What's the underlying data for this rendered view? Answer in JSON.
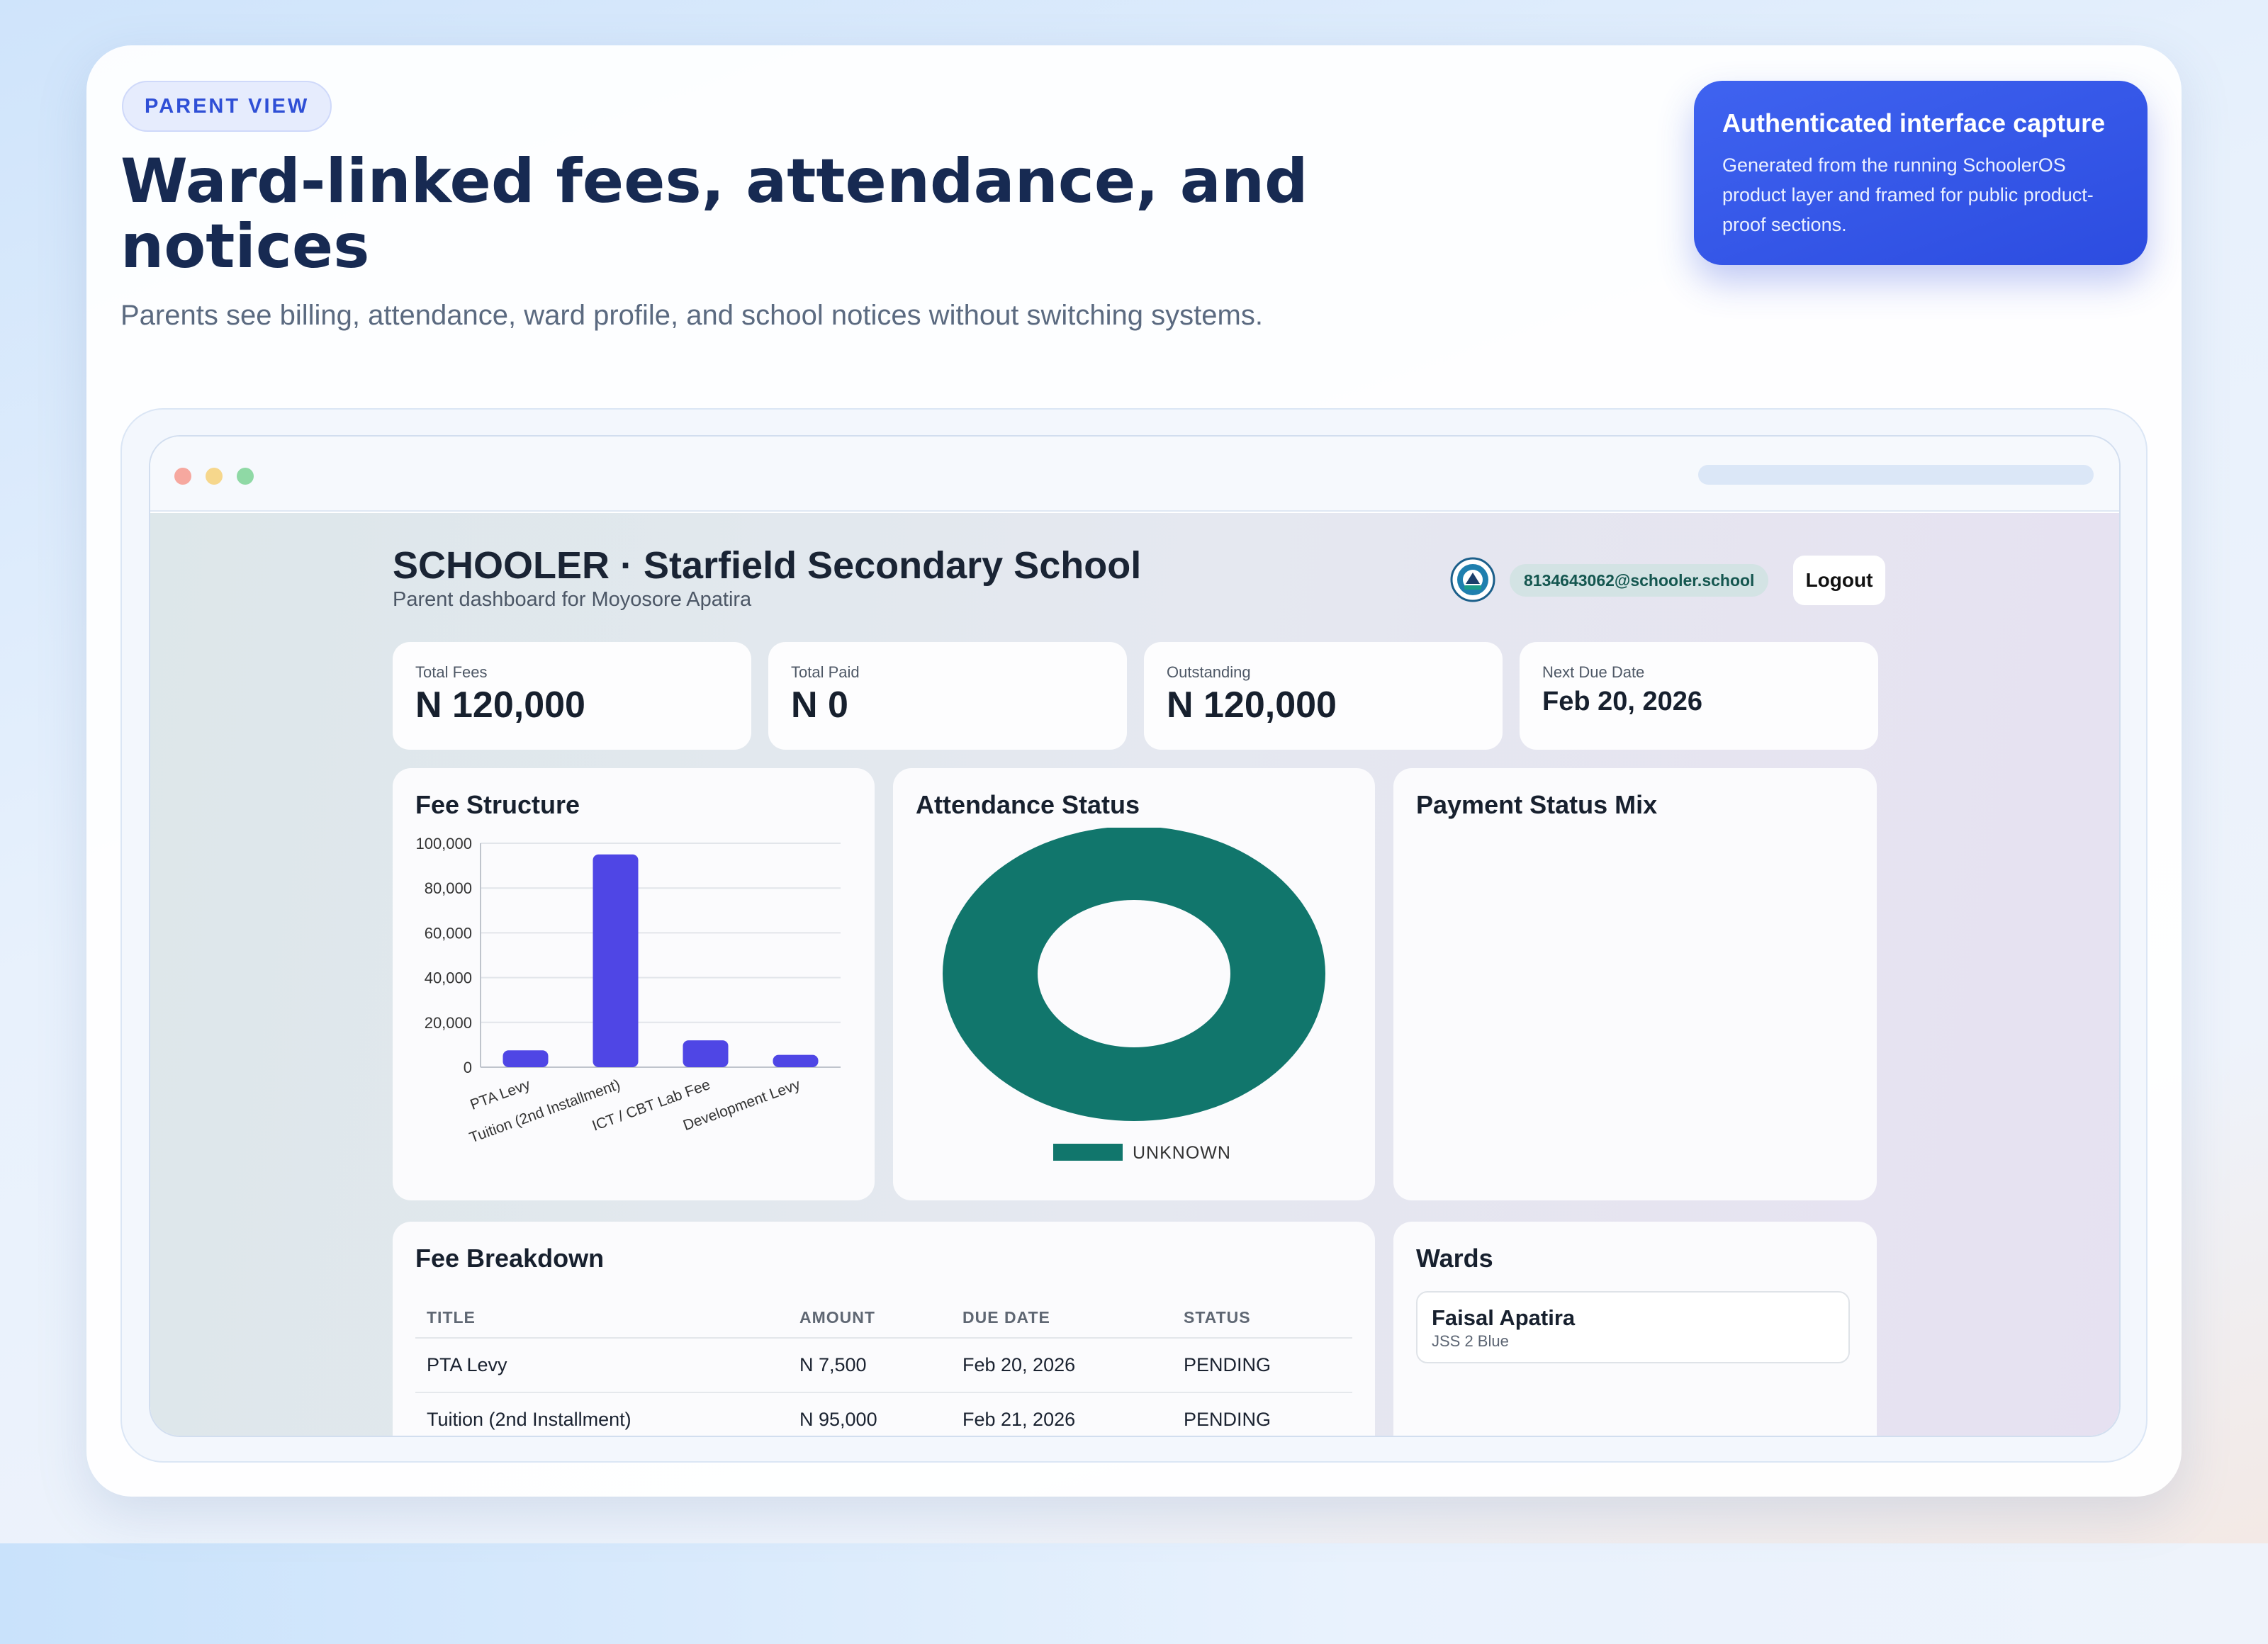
{
  "hero": {
    "pill": "PARENT VIEW",
    "headline": "Ward-linked fees, attendance, and notices",
    "subhead": "Parents see billing, attendance, ward profile, and school notices without switching systems."
  },
  "auth_card": {
    "title": "Authenticated interface capture",
    "text": "Generated from the running SchoolerOS product layer and framed for public product-proof sections."
  },
  "app": {
    "school_title": "SCHOOLER · Starfield Secondary School",
    "school_sub": "Parent dashboard for Moyosore Apatira",
    "user_email": "8134643062@schooler.school",
    "logout_label": "Logout"
  },
  "stats": [
    {
      "label": "Total Fees",
      "value": "N 120,000"
    },
    {
      "label": "Total Paid",
      "value": "N 0"
    },
    {
      "label": "Outstanding",
      "value": "N 120,000"
    },
    {
      "label": "Next Due Date",
      "value": "Feb 20, 2026"
    }
  ],
  "panels": {
    "fee_structure": "Fee Structure",
    "attendance": "Attendance Status",
    "payment_mix": "Payment Status Mix",
    "fee_breakdown": "Fee Breakdown",
    "wards": "Wards"
  },
  "chart_data": [
    {
      "type": "bar",
      "title": "Fee Structure",
      "categories": [
        "PTA Levy",
        "Tuition (2nd Installment)",
        "ICT / CBT Lab Fee",
        "Development Levy"
      ],
      "values": [
        7500,
        95000,
        12000,
        5500
      ],
      "ylim": [
        0,
        100000
      ],
      "yticks": [
        "0",
        "20,000",
        "40,000",
        "60,000",
        "80,000",
        "100,000"
      ],
      "grid": true,
      "color": "#4f46e5"
    },
    {
      "type": "pie",
      "title": "Attendance Status",
      "labels": [
        "UNKNOWN"
      ],
      "values": [
        100
      ],
      "color": "#11766c",
      "legend": "bottom"
    }
  ],
  "fee_table": {
    "headers": [
      "TITLE",
      "AMOUNT",
      "DUE DATE",
      "STATUS"
    ],
    "rows": [
      [
        "PTA Levy",
        "N 7,500",
        "Feb 20, 2026",
        "PENDING"
      ],
      [
        "Tuition (2nd Installment)",
        "N 95,000",
        "Feb 21, 2026",
        "PENDING"
      ]
    ]
  },
  "wards": [
    {
      "name": "Faisal Apatira",
      "class": "JSS 2 Blue"
    }
  ]
}
